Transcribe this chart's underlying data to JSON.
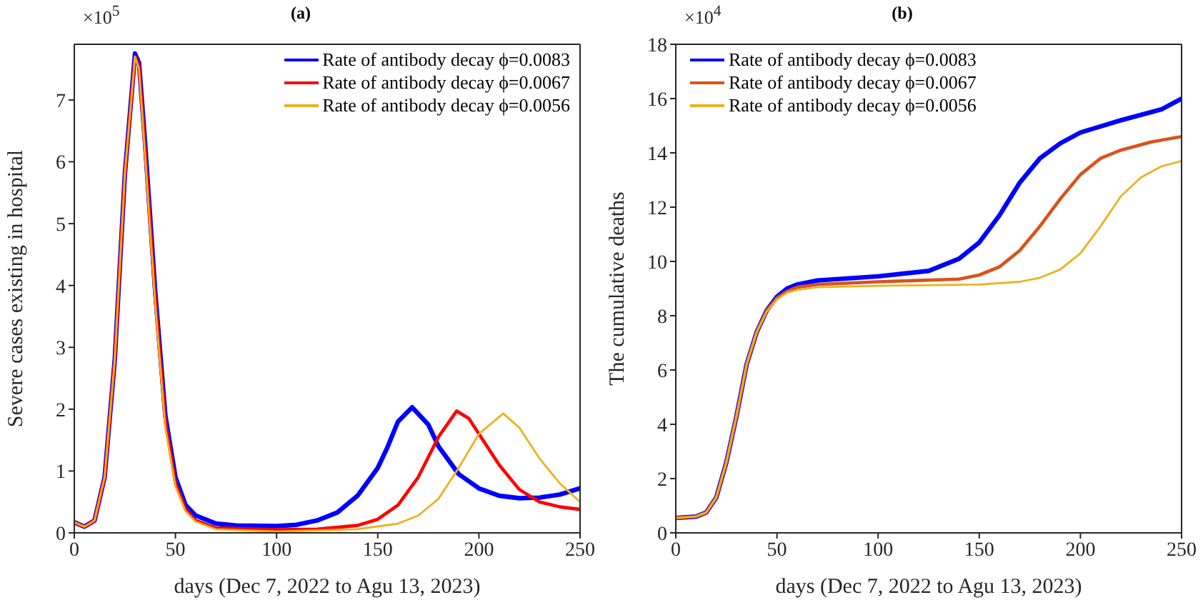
{
  "chart_data": [
    {
      "type": "line",
      "title": "(a)",
      "xlabel": "days (Dec 7, 2022 to Agu 13, 2023)",
      "ylabel": "Severe cases existing in hospital",
      "annotations": [
        "×10$^{5}$"
      ],
      "xlim": [
        0,
        250
      ],
      "xticks": [
        0,
        50,
        100,
        150,
        200,
        250
      ],
      "ylim": [
        0,
        7.9
      ],
      "yticks": [
        0,
        1,
        2,
        3,
        4,
        5,
        6,
        7
      ],
      "legend": "top right",
      "marker": "none",
      "line_style": "solid",
      "series": [
        {
          "name": "Rate of antibody decay ϕ=0.0083",
          "color": "#0000ff",
          "x": [
            0,
            5,
            10,
            15,
            20,
            25,
            30,
            32,
            35,
            40,
            45,
            50,
            55,
            60,
            70,
            80,
            100,
            110,
            120,
            130,
            140,
            150,
            155,
            160,
            167,
            175,
            180,
            190,
            200,
            210,
            220,
            230,
            240,
            250
          ],
          "values": [
            0.17,
            0.1,
            0.2,
            0.9,
            2.8,
            5.8,
            7.75,
            7.6,
            6.3,
            3.9,
            1.9,
            0.9,
            0.45,
            0.28,
            0.15,
            0.12,
            0.11,
            0.13,
            0.2,
            0.33,
            0.6,
            1.05,
            1.4,
            1.8,
            2.03,
            1.75,
            1.4,
            0.95,
            0.72,
            0.6,
            0.56,
            0.57,
            0.62,
            0.72
          ]
        },
        {
          "name": "Rate of antibody decay ϕ=0.0067",
          "color": "#ff0000",
          "x": [
            0,
            5,
            10,
            15,
            20,
            25,
            30,
            32,
            35,
            40,
            45,
            50,
            55,
            60,
            70,
            100,
            120,
            140,
            150,
            160,
            170,
            180,
            189,
            195,
            200,
            210,
            220,
            230,
            240,
            250
          ],
          "values": [
            0.17,
            0.1,
            0.2,
            0.9,
            2.8,
            5.8,
            7.7,
            7.55,
            6.2,
            3.8,
            1.8,
            0.8,
            0.38,
            0.2,
            0.08,
            0.05,
            0.06,
            0.12,
            0.22,
            0.45,
            0.9,
            1.55,
            1.97,
            1.85,
            1.6,
            1.1,
            0.7,
            0.5,
            0.42,
            0.38
          ]
        },
        {
          "name": "Rate of antibody decay ϕ=0.0056",
          "color": "#edb120",
          "x": [
            0,
            5,
            10,
            15,
            20,
            25,
            30,
            32,
            35,
            40,
            45,
            50,
            55,
            60,
            70,
            100,
            140,
            160,
            170,
            180,
            190,
            200,
            212,
            220,
            230,
            240,
            250
          ],
          "values": [
            0.17,
            0.1,
            0.2,
            0.9,
            2.8,
            5.8,
            7.7,
            7.5,
            6.1,
            3.7,
            1.7,
            0.75,
            0.35,
            0.18,
            0.06,
            0.02,
            0.06,
            0.15,
            0.28,
            0.55,
            1.05,
            1.6,
            1.93,
            1.7,
            1.2,
            0.8,
            0.5
          ]
        }
      ]
    },
    {
      "type": "line",
      "title": "(b)",
      "xlabel": "days (Dec 7, 2022 to Agu 13, 2023)",
      "ylabel": "The cumulative deaths",
      "annotations": [
        "×10$^{4}$"
      ],
      "xlim": [
        0,
        250
      ],
      "xticks": [
        0,
        50,
        100,
        150,
        200,
        250
      ],
      "ylim": [
        0,
        18
      ],
      "yticks": [
        0,
        2,
        4,
        6,
        8,
        10,
        12,
        14,
        16,
        18
      ],
      "legend": "top left",
      "marker": "none",
      "line_style": "solid",
      "series": [
        {
          "name": "Rate of antibody decay ϕ=0.0083",
          "color": "#0000ff",
          "x": [
            0,
            10,
            15,
            20,
            25,
            30,
            35,
            40,
            45,
            50,
            55,
            60,
            70,
            100,
            125,
            140,
            150,
            160,
            170,
            180,
            190,
            200,
            220,
            240,
            250
          ],
          "values": [
            0.55,
            0.6,
            0.75,
            1.3,
            2.6,
            4.3,
            6.2,
            7.4,
            8.2,
            8.7,
            9.0,
            9.15,
            9.3,
            9.45,
            9.65,
            10.1,
            10.7,
            11.7,
            12.9,
            13.8,
            14.35,
            14.75,
            15.2,
            15.6,
            16.0
          ]
        },
        {
          "name": "Rate of antibody decay ϕ=0.0067",
          "color": "#d95319",
          "x": [
            0,
            10,
            15,
            20,
            25,
            30,
            35,
            40,
            45,
            50,
            55,
            60,
            70,
            100,
            140,
            150,
            160,
            170,
            180,
            190,
            200,
            210,
            220,
            235,
            250
          ],
          "values": [
            0.55,
            0.6,
            0.75,
            1.3,
            2.6,
            4.3,
            6.2,
            7.4,
            8.2,
            8.65,
            8.9,
            9.05,
            9.15,
            9.25,
            9.35,
            9.5,
            9.8,
            10.4,
            11.3,
            12.3,
            13.2,
            13.8,
            14.1,
            14.4,
            14.6
          ]
        },
        {
          "name": "Rate of antibody decay ϕ=0.0056",
          "color": "#edb120",
          "x": [
            0,
            10,
            15,
            20,
            25,
            30,
            35,
            40,
            45,
            50,
            55,
            60,
            70,
            100,
            150,
            170,
            180,
            190,
            200,
            210,
            220,
            230,
            240,
            250
          ],
          "values": [
            0.55,
            0.6,
            0.75,
            1.3,
            2.6,
            4.3,
            6.2,
            7.4,
            8.15,
            8.6,
            8.85,
            8.95,
            9.05,
            9.1,
            9.15,
            9.25,
            9.4,
            9.7,
            10.3,
            11.3,
            12.4,
            13.1,
            13.5,
            13.7
          ]
        }
      ]
    }
  ]
}
